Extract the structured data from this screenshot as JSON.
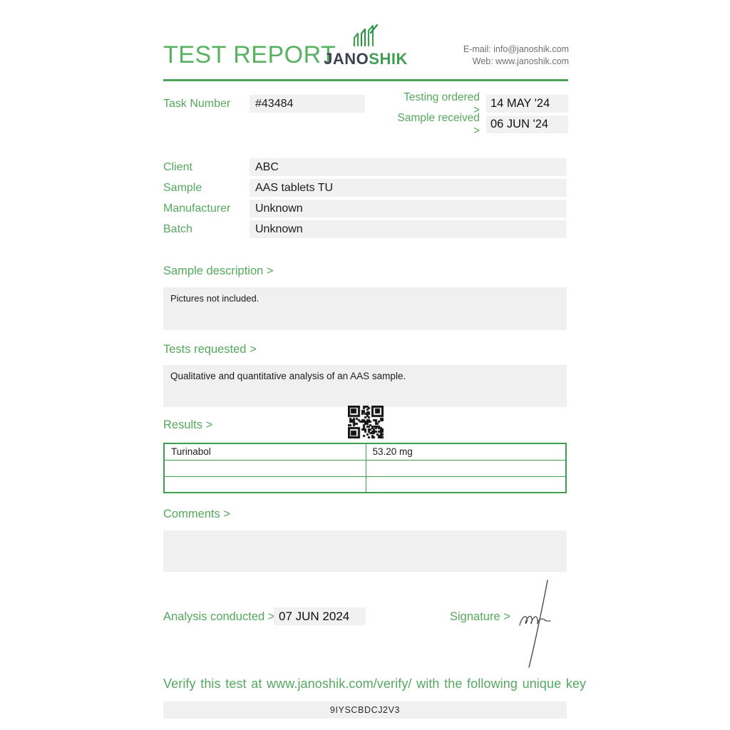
{
  "header": {
    "title": "TEST REPORT",
    "logo": {
      "jano": "JANO",
      "shik": "SHIK"
    },
    "contact": {
      "email_line": "E-mail: info@janoshik.com",
      "web_line": "Web: www.janoshik.com"
    }
  },
  "task": {
    "label": "Task Number",
    "number": "#43484",
    "testing_ordered_label": "Testing ordered >",
    "testing_ordered_value": "14 MAY '24",
    "sample_received_label": "Sample received >",
    "sample_received_value": "06 JUN '24"
  },
  "details": {
    "rows": [
      {
        "label": "Client",
        "value": "ABC"
      },
      {
        "label": "Sample",
        "value": "AAS tablets TU"
      },
      {
        "label": "Manufacturer",
        "value": "Unknown"
      },
      {
        "label": "Batch",
        "value": "Unknown"
      }
    ]
  },
  "sections": {
    "sample_description": {
      "label": "Sample description >",
      "content": "Pictures not included."
    },
    "tests_requested": {
      "label": "Tests requested >",
      "content": "Qualitative and quantitative analysis of an AAS sample."
    },
    "results": {
      "label": "Results >",
      "table": {
        "rows": [
          {
            "name": "Turinabol",
            "value": "53.20 mg"
          },
          {
            "name": "",
            "value": ""
          },
          {
            "name": "",
            "value": ""
          }
        ]
      }
    },
    "comments": {
      "label": "Comments >",
      "content": ""
    }
  },
  "footer": {
    "analysis_label": "Analysis conducted >",
    "analysis_date": "07 JUN 2024",
    "signature_label": "Signature >",
    "verify_text": "Verify this test at www.janoshik.com/verify/ with the following unique key",
    "unique_key": "9IYSCBDCJ2V3"
  },
  "colors": {
    "accent_green": "#55a85d",
    "title_green": "#57b261",
    "logo_dark": "#3b4250",
    "logo_green": "#3f9e52",
    "box_gray": "#f1f1f1",
    "table_border_green": "#3f9e50"
  }
}
